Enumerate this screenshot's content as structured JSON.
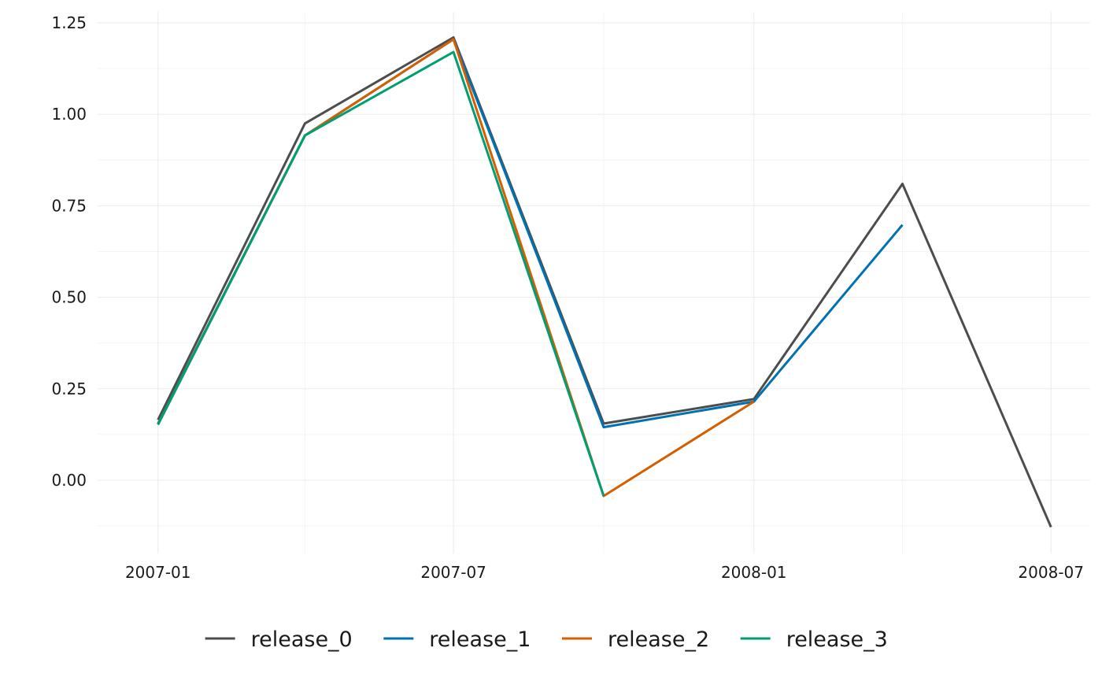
{
  "chart_data": {
    "type": "line",
    "title": "",
    "xlabel": "",
    "ylabel": "",
    "x_tick_labels": [
      "2007-01",
      "2007-07",
      "2008-01",
      "2008-07"
    ],
    "y_tick_labels": [
      "0.00",
      "0.25",
      "0.50",
      "0.75",
      "1.00",
      "1.25"
    ],
    "y_ticks": [
      0,
      0.25,
      0.5,
      0.75,
      1.0,
      1.25
    ],
    "ylim": [
      -0.2,
      1.28
    ],
    "xlim": [
      "2006-11-25",
      "2008-07-25"
    ],
    "grid": true,
    "legend": "bottom",
    "x": [
      "2007-01-01",
      "2007-04-01",
      "2007-07-01",
      "2007-10-01",
      "2008-01-01",
      "2008-04-01",
      "2008-07-01"
    ],
    "series": [
      {
        "name": "release_0",
        "color": "#4d4d4d",
        "values": [
          0.165,
          0.975,
          1.21,
          0.155,
          0.222,
          0.81,
          -0.128
        ]
      },
      {
        "name": "release_1",
        "color": "#0072b2",
        "values": [
          0.155,
          0.942,
          1.205,
          0.145,
          0.215,
          0.698,
          null
        ]
      },
      {
        "name": "release_2",
        "color": "#d55e00",
        "values": [
          0.153,
          0.942,
          1.205,
          -0.043,
          0.215,
          null,
          null
        ]
      },
      {
        "name": "release_3",
        "color": "#009e73",
        "values": [
          0.152,
          0.942,
          1.17,
          -0.043,
          null,
          null,
          null
        ]
      }
    ]
  }
}
